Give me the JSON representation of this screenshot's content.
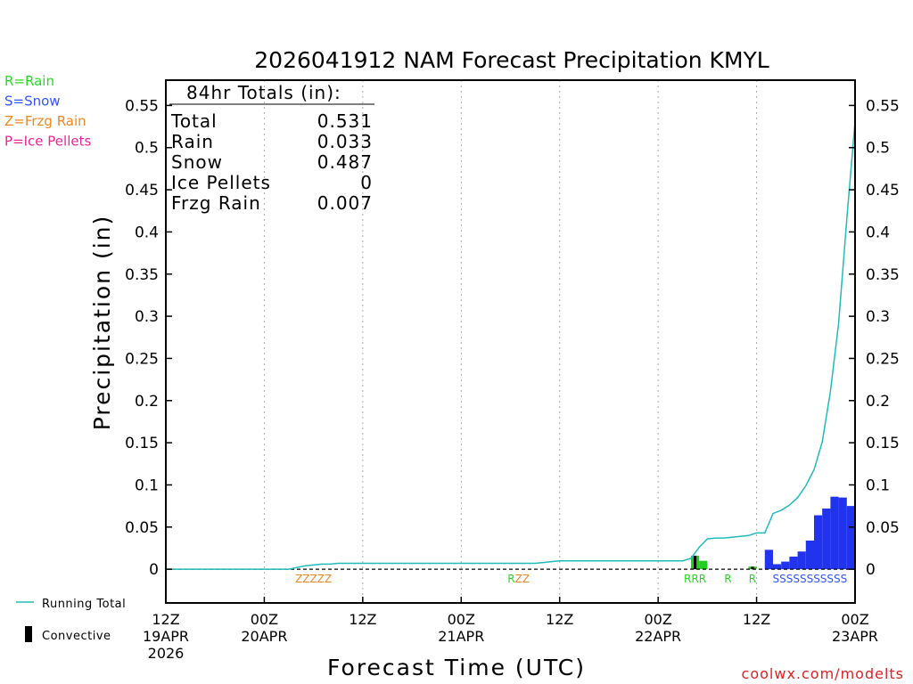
{
  "chart_data": {
    "type": "bar",
    "title": "2026041912 NAM Forecast Precipitation KMYL",
    "xlabel": "Forecast Time (UTC)",
    "ylabel": "Precipitation (in)",
    "ylim": [
      -0.04,
      0.58
    ],
    "yticks": [
      "0",
      "0.05",
      "0.1",
      "0.15",
      "0.2",
      "0.25",
      "0.3",
      "0.35",
      "0.4",
      "0.45",
      "0.5",
      "0.55"
    ],
    "xlim_hours": [
      0,
      84
    ],
    "xticks": [
      {
        "hour": 0,
        "label": "12Z",
        "sub1": "19APR",
        "sub2": "2026"
      },
      {
        "hour": 12,
        "label": "00Z",
        "sub1": "20APR",
        "sub2": ""
      },
      {
        "hour": 24,
        "label": "12Z",
        "sub1": "",
        "sub2": ""
      },
      {
        "hour": 36,
        "label": "00Z",
        "sub1": "21APR",
        "sub2": ""
      },
      {
        "hour": 48,
        "label": "12Z",
        "sub1": "",
        "sub2": ""
      },
      {
        "hour": 60,
        "label": "00Z",
        "sub1": "22APR",
        "sub2": ""
      },
      {
        "hour": 72,
        "label": "12Z",
        "sub1": "",
        "sub2": ""
      },
      {
        "hour": 84,
        "label": "00Z",
        "sub1": "23APR",
        "sub2": ""
      }
    ],
    "type_legend": [
      {
        "text": "R=Rain",
        "color": "#22dd22"
      },
      {
        "text": "S=Snow",
        "color": "#3355ff"
      },
      {
        "text": "Z=Frzg Rain",
        "color": "#ee8822"
      },
      {
        "text": "P=Ice Pellets",
        "color": "#ee2299"
      }
    ],
    "totals": {
      "title": "84hr Totals (in):",
      "rows": [
        {
          "label": "Total",
          "value": "0.531"
        },
        {
          "label": "Rain",
          "value": "0.033"
        },
        {
          "label": "Snow",
          "value": "0.487"
        },
        {
          "label": "Ice Pellets",
          "value": "0"
        },
        {
          "label": "Frzg Rain",
          "value": "0.007"
        }
      ]
    },
    "running_total": {
      "name": "Running Total",
      "color": "#22bbbb",
      "points": [
        [
          0,
          0
        ],
        [
          15,
          0
        ],
        [
          16,
          0.002
        ],
        [
          17,
          0.004
        ],
        [
          18,
          0.005
        ],
        [
          19,
          0.006
        ],
        [
          20,
          0.006
        ],
        [
          21,
          0.007
        ],
        [
          45,
          0.007
        ],
        [
          46,
          0.008
        ],
        [
          47,
          0.009
        ],
        [
          48,
          0.01
        ],
        [
          49,
          0.01
        ],
        [
          62,
          0.01
        ],
        [
          63,
          0.01
        ],
        [
          64,
          0.013
        ],
        [
          65,
          0.026
        ],
        [
          66,
          0.036
        ],
        [
          67,
          0.037
        ],
        [
          68,
          0.037
        ],
        [
          69,
          0.038
        ],
        [
          70,
          0.039
        ],
        [
          71,
          0.04
        ],
        [
          72,
          0.043
        ],
        [
          73,
          0.043
        ],
        [
          74,
          0.066
        ],
        [
          75,
          0.07
        ],
        [
          76,
          0.076
        ],
        [
          77,
          0.085
        ],
        [
          78,
          0.099
        ],
        [
          79,
          0.118
        ],
        [
          80,
          0.151
        ],
        [
          81,
          0.211
        ],
        [
          82,
          0.292
        ],
        [
          83,
          0.416
        ],
        [
          84,
          0.531
        ]
      ]
    },
    "bars": [
      {
        "hour": 64.5,
        "value": 0.016,
        "type": "rain",
        "convective": true
      },
      {
        "hour": 65.5,
        "value": 0.01,
        "type": "rain",
        "convective": false
      },
      {
        "hour": 71.5,
        "value": 0.003,
        "type": "rain",
        "convective": true
      },
      {
        "hour": 73.5,
        "value": 0.023,
        "type": "snow",
        "convective": false
      },
      {
        "hour": 74.5,
        "value": 0.006,
        "type": "snow",
        "convective": false
      },
      {
        "hour": 75.5,
        "value": 0.009,
        "type": "snow",
        "convective": false
      },
      {
        "hour": 76.5,
        "value": 0.015,
        "type": "snow",
        "convective": false
      },
      {
        "hour": 77.5,
        "value": 0.021,
        "type": "snow",
        "convective": false
      },
      {
        "hour": 78.5,
        "value": 0.034,
        "type": "snow",
        "convective": false
      },
      {
        "hour": 79.5,
        "value": 0.064,
        "type": "snow",
        "convective": false
      },
      {
        "hour": 80.5,
        "value": 0.072,
        "type": "snow",
        "convective": false
      },
      {
        "hour": 81.5,
        "value": 0.086,
        "type": "snow",
        "convective": false
      },
      {
        "hour": 82.5,
        "value": 0.085,
        "type": "snow",
        "convective": false
      },
      {
        "hour": 83.5,
        "value": 0.075,
        "type": "snow",
        "convective": false
      }
    ],
    "type_markers": [
      {
        "text": "ZZZZZ",
        "hour": 18,
        "color": "#ee8822"
      },
      {
        "text": "RZZ",
        "hour": 43,
        "color": "#ee8822",
        "first_color": "#22dd22"
      },
      {
        "text": "RRR",
        "hour": 64.5,
        "color": "#22dd22"
      },
      {
        "text": "R",
        "hour": 68.5,
        "color": "#22dd22"
      },
      {
        "text": "R",
        "hour": 71.5,
        "color": "#22dd22"
      },
      {
        "text": "SSSSSSSSSSS",
        "hour": 78.5,
        "color": "#3355ff"
      }
    ],
    "bottom_legend": [
      {
        "name": "Running Total",
        "kind": "line",
        "color": "#22bbbb"
      },
      {
        "name": "Convective",
        "kind": "bar",
        "color": "#000000"
      }
    ],
    "credit": "coolwx.com/modelts",
    "colors": {
      "rain": "#22cc22",
      "snow": "#2233ee",
      "frzg": "#ee8822",
      "convective": "#000000",
      "grid": "#aaaaaa"
    }
  }
}
